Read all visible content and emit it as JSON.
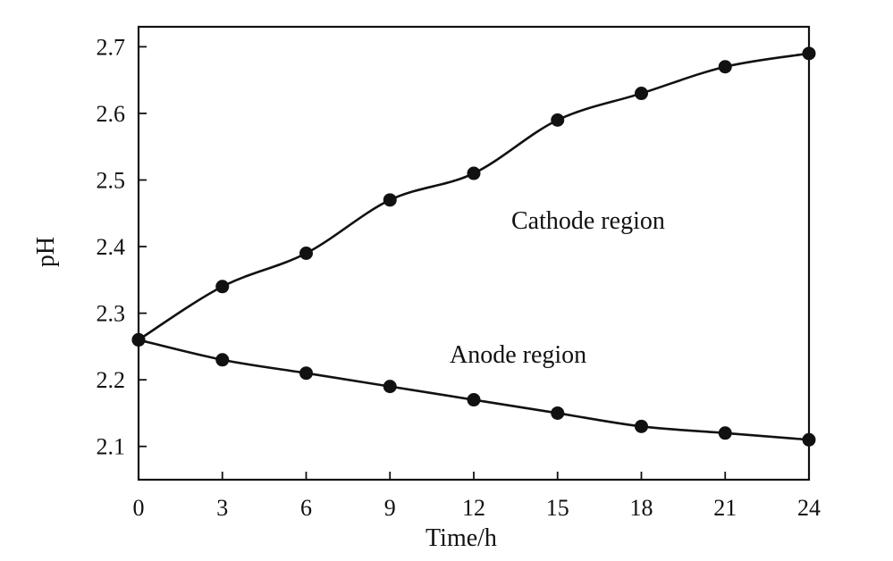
{
  "chart_data": {
    "type": "line",
    "xlabel": "Time/h",
    "ylabel": "pH",
    "xlim": [
      0,
      24
    ],
    "ylim": [
      2.05,
      2.73
    ],
    "xticks": [
      0,
      3,
      6,
      9,
      12,
      15,
      18,
      21,
      24
    ],
    "yticks": [
      2.1,
      2.2,
      2.3,
      2.4,
      2.5,
      2.6,
      2.7
    ],
    "grid": false,
    "x": [
      0,
      3,
      6,
      9,
      12,
      15,
      18,
      21,
      24
    ],
    "series": [
      {
        "values": [
          2.26,
          2.34,
          2.39,
          2.47,
          2.51,
          2.59,
          2.63,
          2.67,
          2.69
        ]
      },
      {
        "values": [
          2.26,
          2.23,
          2.21,
          2.19,
          2.17,
          2.15,
          2.13,
          2.12,
          2.11
        ]
      }
    ],
    "annotations": [
      "Cathode region",
      "Anode region"
    ],
    "marker_color": "#111111",
    "line_color": "#111111"
  }
}
